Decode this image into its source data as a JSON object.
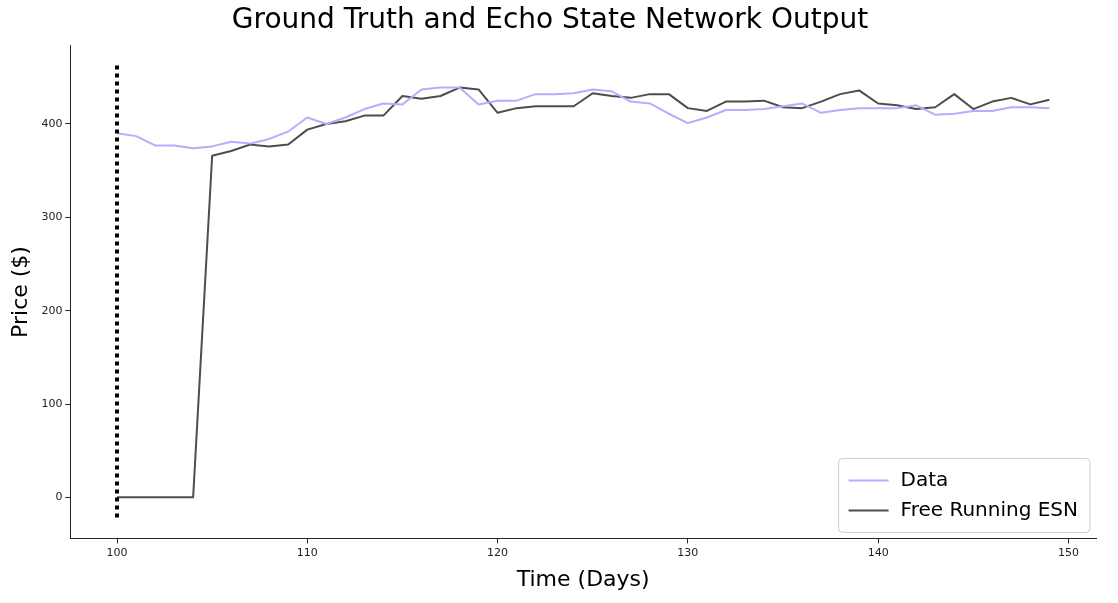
{
  "chart_data": {
    "type": "line",
    "title": "Ground Truth and Echo State Network Output",
    "xlabel": "Time (Days)",
    "ylabel": "Price ($)",
    "x": [
      100,
      101,
      102,
      103,
      104,
      105,
      106,
      107,
      108,
      109,
      110,
      111,
      112,
      113,
      114,
      115,
      116,
      117,
      118,
      119,
      120,
      121,
      122,
      123,
      124,
      125,
      126,
      127,
      128,
      129,
      130,
      131,
      132,
      133,
      134,
      135,
      136,
      137,
      138,
      139,
      140,
      141,
      142,
      143,
      144,
      145,
      146,
      147,
      148,
      149
    ],
    "series": [
      {
        "name": "Data",
        "color": "#b0b0ff",
        "values": [
          390,
          387,
          377,
          377,
          374,
          376,
          381,
          379,
          384,
          392,
          407,
          400,
          407,
          416,
          422,
          421,
          437,
          439,
          439,
          421,
          425,
          425,
          432,
          432,
          433,
          437,
          435,
          424,
          422,
          411,
          401,
          407,
          415,
          415,
          416,
          419,
          422,
          412,
          415,
          417,
          417,
          417,
          420,
          410,
          411,
          414,
          414,
          418,
          418,
          417
        ]
      },
      {
        "name": "Free Running ESN",
        "color": "#4d4d4d",
        "values": [
          0,
          0,
          0,
          0,
          0,
          366,
          371,
          378,
          376,
          378,
          394,
          400,
          403,
          409,
          409,
          430,
          427,
          430,
          439,
          437,
          412,
          417,
          419,
          419,
          419,
          433,
          430,
          428,
          432,
          432,
          417,
          414,
          424,
          424,
          425,
          418,
          417,
          424,
          432,
          436,
          422,
          420,
          416,
          418,
          432,
          416,
          424,
          428,
          421,
          426
        ]
      }
    ],
    "xlim": [
      97.55,
      151.45
    ],
    "xticks": [
      100,
      110,
      120,
      130,
      140,
      150
    ],
    "ylim": [
      -44,
      484
    ],
    "yticks": [
      0,
      100,
      200,
      300,
      400
    ],
    "ref_lines": [
      {
        "axis": "x",
        "value": 100,
        "color": "#000000",
        "line_style": "dotted"
      }
    ],
    "grid": false,
    "legend": "bottom right",
    "marker": "none",
    "line_style": "solid"
  }
}
